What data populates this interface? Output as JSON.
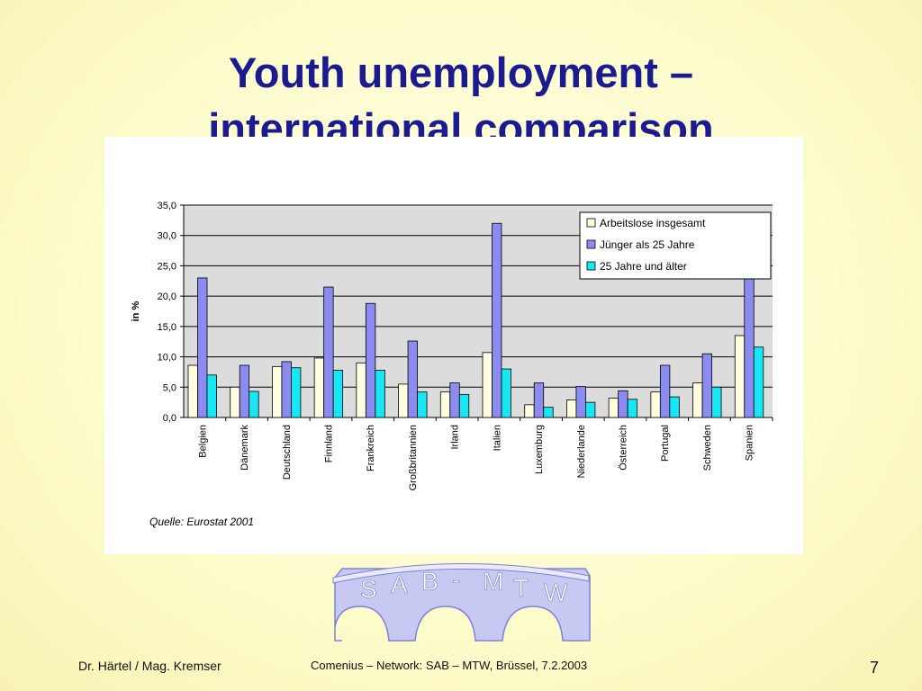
{
  "slide": {
    "title_line1": "Youth unemployment –",
    "title_line2": "international comparison"
  },
  "footer": {
    "left": "Dr. Härtel / Mag. Kremser",
    "center": "Comenius – Network: SAB – MTW, Brüssel, 7.2.2003",
    "page_number": "7"
  },
  "logo": {
    "letters": [
      "S",
      "A",
      "B",
      "-",
      "M",
      "T",
      "W"
    ]
  },
  "chart_data": {
    "type": "bar",
    "title": "",
    "xlabel": "",
    "ylabel": "in %",
    "ylim": [
      0,
      35
    ],
    "yticks": [
      "0,0",
      "5,0",
      "10,0",
      "15,0",
      "20,0",
      "25,0",
      "30,0",
      "35,0"
    ],
    "grid": true,
    "legend_position": "top-right",
    "source": "Quelle: Eurostat 2001",
    "categories": [
      "Belgien",
      "Dänemark",
      "Deutschland",
      "Finnland",
      "Frankreich",
      "Großbritannien",
      "Irland",
      "Italien",
      "Luxemburg",
      "Niederlande",
      "Österreich",
      "Portugal",
      "Schweden",
      "Spanien"
    ],
    "series": [
      {
        "name": "Arbeitslose insgesamt",
        "color": "#fffee0",
        "values": [
          8.6,
          5.0,
          8.4,
          9.8,
          9.0,
          5.5,
          4.2,
          10.7,
          2.1,
          2.9,
          3.2,
          4.2,
          5.7,
          13.5
        ]
      },
      {
        "name": "Jünger als 25 Jahre",
        "color": "#8b8bf0",
        "values": [
          23.0,
          8.6,
          9.2,
          21.5,
          18.8,
          12.6,
          5.7,
          32.0,
          5.7,
          5.1,
          4.4,
          8.6,
          10.5,
          25.0
        ]
      },
      {
        "name": "25 Jahre und älter",
        "color": "#17e7f2",
        "values": [
          7.0,
          4.3,
          8.2,
          7.8,
          7.8,
          4.2,
          3.8,
          8.0,
          1.7,
          2.5,
          3.0,
          3.4,
          5.0,
          11.6
        ]
      }
    ]
  }
}
